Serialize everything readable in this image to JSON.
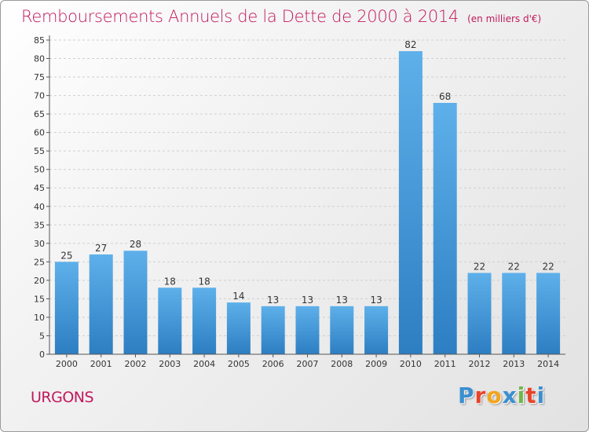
{
  "title": "Remboursements Annuels de la Dette de 2000 à 2014",
  "unit_note": "(en milliers d'€)",
  "commune": "URGONS",
  "brand": {
    "letters": [
      "P",
      "r",
      "o",
      "x",
      "i",
      "t",
      "i"
    ],
    "colors": [
      "#3a8fd0",
      "#e8442b",
      "#f2a51d",
      "#3a8fd0",
      "#72b64a",
      "#e8442b",
      "#3a8fd0"
    ]
  },
  "colors": {
    "bar_top": "#5eb0ea",
    "bar_bottom": "#2d7ec2",
    "title": "#c2185b",
    "grid": "#cfcfcf"
  },
  "chart_data": {
    "type": "bar",
    "title": "Remboursements Annuels de la Dette de 2000 à 2014",
    "subtitle": "(en milliers d'€)",
    "categories": [
      "2000",
      "2001",
      "2002",
      "2003",
      "2004",
      "2005",
      "2006",
      "2007",
      "2008",
      "2009",
      "2010",
      "2011",
      "2012",
      "2013",
      "2014"
    ],
    "values": [
      25,
      27,
      28,
      18,
      18,
      14,
      13,
      13,
      13,
      13,
      82,
      68,
      22,
      22,
      22
    ],
    "xlabel": "",
    "ylabel": "",
    "ylim": [
      0,
      85
    ],
    "yticks": [
      0,
      5,
      10,
      15,
      20,
      25,
      30,
      35,
      40,
      45,
      50,
      55,
      60,
      65,
      70,
      75,
      80,
      85
    ],
    "grid": true,
    "data_labels": true
  }
}
